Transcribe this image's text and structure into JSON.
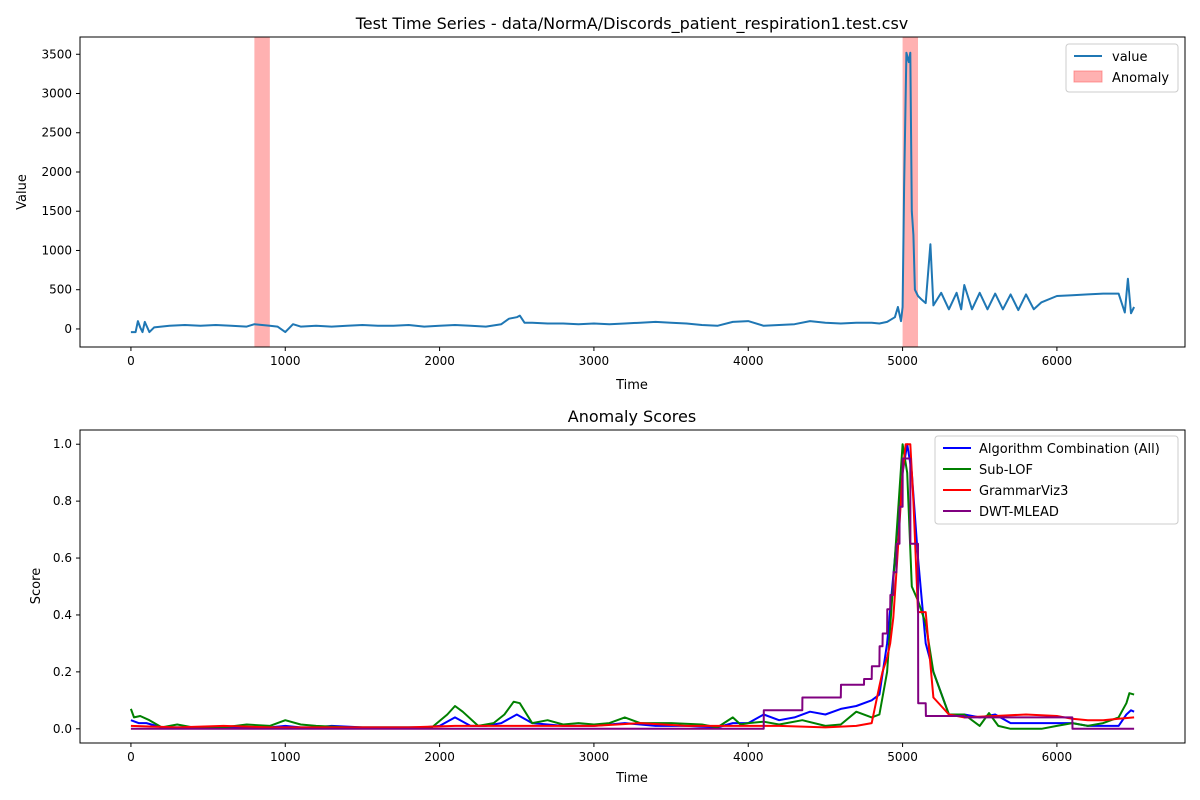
{
  "chart_data": [
    {
      "type": "line",
      "title": "Test Time Series - data/NormA/Discords_patient_respiration1.test.csv",
      "xlabel": "Time",
      "ylabel": "Value",
      "xlim": [
        -330,
        6830
      ],
      "ylim": [
        -230,
        3720
      ],
      "xticks": [
        0,
        1000,
        2000,
        3000,
        4000,
        5000,
        6000
      ],
      "yticks": [
        0,
        500,
        1000,
        1500,
        2000,
        2500,
        3000,
        3500
      ],
      "legend_position": "upper right",
      "series": [
        {
          "name": "value",
          "color": "#1f77b4",
          "x": [
            0,
            30,
            45,
            60,
            75,
            90,
            120,
            150,
            250,
            350,
            450,
            550,
            650,
            750,
            800,
            850,
            900,
            950,
            1000,
            1050,
            1100,
            1200,
            1300,
            1400,
            1500,
            1600,
            1700,
            1800,
            1900,
            2000,
            2100,
            2200,
            2300,
            2400,
            2450,
            2500,
            2520,
            2550,
            2600,
            2700,
            2800,
            2900,
            3000,
            3100,
            3200,
            3300,
            3400,
            3500,
            3600,
            3700,
            3800,
            3900,
            4000,
            4100,
            4200,
            4300,
            4400,
            4500,
            4600,
            4700,
            4800,
            4850,
            4900,
            4950,
            4970,
            4990,
            5000,
            5010,
            5025,
            5040,
            5050,
            5060,
            5070,
            5080,
            5100,
            5120,
            5150,
            5180,
            5200,
            5250,
            5300,
            5350,
            5380,
            5400,
            5450,
            5500,
            5550,
            5600,
            5650,
            5700,
            5750,
            5800,
            5850,
            5900,
            6000,
            6100,
            6200,
            6300,
            6400,
            6440,
            6460,
            6480,
            6500
          ],
          "y": [
            -40,
            -40,
            100,
            20,
            -40,
            90,
            -40,
            20,
            40,
            50,
            40,
            50,
            40,
            30,
            60,
            50,
            40,
            30,
            -40,
            60,
            30,
            40,
            30,
            40,
            50,
            40,
            40,
            50,
            30,
            40,
            50,
            40,
            30,
            60,
            130,
            150,
            170,
            80,
            80,
            70,
            70,
            60,
            70,
            60,
            70,
            80,
            90,
            80,
            70,
            50,
            40,
            90,
            100,
            40,
            50,
            60,
            100,
            80,
            70,
            80,
            80,
            70,
            90,
            150,
            280,
            100,
            280,
            1800,
            3520,
            3400,
            3520,
            1500,
            1200,
            500,
            420,
            380,
            330,
            1080,
            300,
            460,
            250,
            460,
            250,
            560,
            250,
            460,
            250,
            450,
            250,
            440,
            240,
            440,
            250,
            340,
            420,
            430,
            440,
            450,
            450,
            210,
            640,
            200,
            280
          ]
        }
      ],
      "anomalies": [
        {
          "label": "Anomaly",
          "color": "#ff6464",
          "start": 800,
          "end": 900
        },
        {
          "label": "",
          "color": "#ff6464",
          "start": 5000,
          "end": 5100
        }
      ],
      "legend": [
        "value",
        "Anomaly"
      ]
    },
    {
      "type": "line",
      "title": "Anomaly Scores",
      "xlabel": "Time",
      "ylabel": "Score",
      "xlim": [
        -330,
        6830
      ],
      "ylim": [
        -0.05,
        1.05
      ],
      "xticks": [
        0,
        1000,
        2000,
        3000,
        4000,
        5000,
        6000
      ],
      "yticks": [
        0.0,
        0.2,
        0.4,
        0.6,
        0.8,
        1.0
      ],
      "legend_position": "upper right",
      "series": [
        {
          "name": "Algorithm Combination (All)",
          "color": "#0000ff",
          "x": [
            0,
            50,
            100,
            200,
            300,
            500,
            700,
            900,
            1000,
            1100,
            1200,
            1300,
            1500,
            1700,
            1900,
            2000,
            2100,
            2200,
            2300,
            2400,
            2500,
            2600,
            2800,
            3000,
            3200,
            3400,
            3600,
            3800,
            3900,
            4000,
            4100,
            4200,
            4300,
            4400,
            4500,
            4600,
            4700,
            4800,
            4850,
            4900,
            4950,
            5000,
            5030,
            5060,
            5100,
            5150,
            5200,
            5300,
            5400,
            5500,
            5600,
            5700,
            5800,
            6000,
            6100,
            6200,
            6300,
            6400,
            6450,
            6480,
            6500
          ],
          "y": [
            0.03,
            0.02,
            0.02,
            0.005,
            0.005,
            0.005,
            0.005,
            0.005,
            0.01,
            0.005,
            0.005,
            0.01,
            0.005,
            0.005,
            0.005,
            0.01,
            0.04,
            0.01,
            0.01,
            0.02,
            0.05,
            0.02,
            0.01,
            0.01,
            0.02,
            0.01,
            0.01,
            0.005,
            0.02,
            0.02,
            0.05,
            0.03,
            0.04,
            0.06,
            0.05,
            0.07,
            0.08,
            0.1,
            0.12,
            0.3,
            0.6,
            0.9,
            1.0,
            0.9,
            0.6,
            0.3,
            0.2,
            0.05,
            0.05,
            0.04,
            0.05,
            0.02,
            0.02,
            0.02,
            0.02,
            0.01,
            0.01,
            0.01,
            0.05,
            0.065,
            0.06
          ]
        },
        {
          "name": "Sub-LOF",
          "color": "#008000",
          "x": [
            0,
            20,
            60,
            120,
            200,
            300,
            400,
            600,
            750,
            900,
            1000,
            1100,
            1200,
            1400,
            1600,
            1800,
            1950,
            2050,
            2100,
            2150,
            2250,
            2350,
            2420,
            2480,
            2520,
            2600,
            2700,
            2800,
            2900,
            3000,
            3100,
            3200,
            3300,
            3500,
            3700,
            3800,
            3900,
            3950,
            4000,
            4100,
            4200,
            4350,
            4500,
            4600,
            4700,
            4800,
            4850,
            4900,
            4950,
            5000,
            5030,
            5060,
            5100,
            5150,
            5200,
            5300,
            5400,
            5500,
            5560,
            5620,
            5700,
            5800,
            5900,
            6000,
            6100,
            6200,
            6300,
            6400,
            6450,
            6470,
            6500
          ],
          "y": [
            0.07,
            0.04,
            0.045,
            0.03,
            0.005,
            0.015,
            0.005,
            0.005,
            0.015,
            0.01,
            0.03,
            0.015,
            0.01,
            0.005,
            0.005,
            0.005,
            0.005,
            0.05,
            0.08,
            0.06,
            0.01,
            0.02,
            0.05,
            0.095,
            0.09,
            0.02,
            0.03,
            0.015,
            0.02,
            0.015,
            0.02,
            0.04,
            0.02,
            0.02,
            0.015,
            0.005,
            0.04,
            0.015,
            0.02,
            0.025,
            0.015,
            0.03,
            0.01,
            0.015,
            0.06,
            0.04,
            0.05,
            0.2,
            0.6,
            1.0,
            0.9,
            0.5,
            0.45,
            0.37,
            0.2,
            0.05,
            0.05,
            0.01,
            0.055,
            0.01,
            0.0,
            0.0,
            0.0,
            0.01,
            0.02,
            0.01,
            0.02,
            0.04,
            0.09,
            0.125,
            0.12
          ]
        },
        {
          "name": "GrammarViz3",
          "color": "#ff0000",
          "x": [
            0,
            300,
            600,
            900,
            1200,
            1500,
            1800,
            2100,
            2400,
            2700,
            3000,
            3300,
            3600,
            3900,
            4200,
            4500,
            4700,
            4800,
            4850,
            4870,
            4900,
            4920,
            4940,
            4960,
            4980,
            5000,
            5020,
            5050,
            5070,
            5100,
            5150,
            5200,
            5250,
            5300,
            5400,
            5600,
            5800,
            6000,
            6100,
            6200,
            6300,
            6400,
            6500
          ],
          "y": [
            0.01,
            0.005,
            0.01,
            0.005,
            0.005,
            0.005,
            0.005,
            0.01,
            0.01,
            0.01,
            0.01,
            0.02,
            0.01,
            0.01,
            0.01,
            0.005,
            0.01,
            0.02,
            0.15,
            0.2,
            0.25,
            0.3,
            0.39,
            0.55,
            0.72,
            0.9,
            1.0,
            1.0,
            0.8,
            0.41,
            0.41,
            0.11,
            0.08,
            0.05,
            0.04,
            0.045,
            0.05,
            0.045,
            0.035,
            0.03,
            0.03,
            0.035,
            0.04
          ]
        },
        {
          "name": "DWT-MLEAD",
          "color": "#800080",
          "x": [
            0,
            4100,
            4101,
            4350,
            4351,
            4600,
            4601,
            4750,
            4751,
            4800,
            4801,
            4850,
            4851,
            4870,
            4871,
            4900,
            4901,
            4920,
            4921,
            4940,
            4941,
            4960,
            4961,
            4980,
            4981,
            5000,
            5001,
            5050,
            5051,
            5100,
            5101,
            5150,
            5151,
            5200,
            5201,
            5400,
            5401,
            6100,
            6101,
            6500
          ],
          "y": [
            0.0,
            0.0,
            0.065,
            0.065,
            0.11,
            0.11,
            0.155,
            0.155,
            0.175,
            0.175,
            0.22,
            0.22,
            0.29,
            0.29,
            0.335,
            0.335,
            0.42,
            0.42,
            0.47,
            0.47,
            0.55,
            0.55,
            0.65,
            0.65,
            0.78,
            0.78,
            0.95,
            0.95,
            0.65,
            0.65,
            0.09,
            0.09,
            0.045,
            0.045,
            0.045,
            0.045,
            0.04,
            0.04,
            0.0,
            0.0
          ]
        }
      ],
      "legend": [
        "Algorithm Combination (All)",
        "Sub-LOF",
        "GrammarViz3",
        "DWT-MLEAD"
      ]
    }
  ]
}
